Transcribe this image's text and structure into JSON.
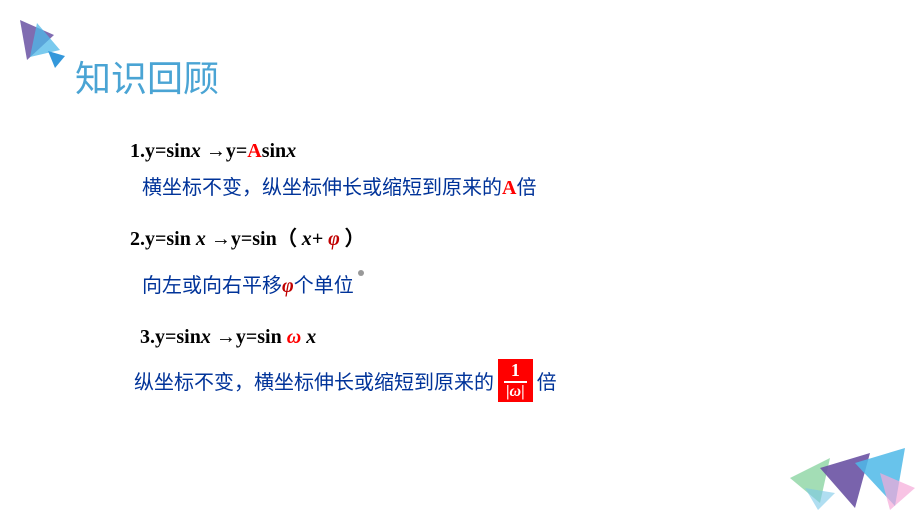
{
  "header": {
    "title": "知识回顾",
    "title_color": "#4aa4d4",
    "title_fontsize": 36,
    "triangle_colors": {
      "large": [
        "#6a52a3",
        "#4db8e8"
      ],
      "small": "#3498db"
    }
  },
  "content": {
    "items": [
      {
        "formula_prefix": "1.y=sin",
        "formula_var1": "x",
        "formula_arrow": " →y=",
        "formula_highlight": "A",
        "formula_suffix": "sin",
        "formula_var2": "x",
        "description_prefix": "横坐标不变，纵坐标伸长或缩短到原来的",
        "description_highlight": "A",
        "description_suffix": "倍"
      },
      {
        "formula_prefix": "2.y=sin ",
        "formula_var1": "x",
        "formula_arrow": " →y=sin",
        "formula_paren_open": "（",
        "formula_mid": " x+",
        "formula_highlight": " φ",
        "formula_paren_close": " ）",
        "description_prefix": "向左或向右平移",
        "description_highlight": "φ",
        "description_suffix": "个单位"
      },
      {
        "formula_prefix": "3.y=sin",
        "formula_var1": "x",
        "formula_arrow": " →y=sin ",
        "formula_highlight": "ω",
        "formula_var2": " x",
        "description_prefix": "纵坐标不变，横坐标伸长或缩短到原来的",
        "fraction_num": "1",
        "fraction_den": "|ω|",
        "description_suffix": " 倍"
      }
    ]
  },
  "colors": {
    "text_black": "#000000",
    "text_blue": "#003399",
    "text_red": "#ff0000",
    "text_darkred": "#c00000",
    "background": "#ffffff"
  },
  "decorations": {
    "bottom_right_triangles": [
      {
        "color": "#8cd4a3",
        "opacity": 0.8
      },
      {
        "color": "#6a52a3",
        "opacity": 0.9
      },
      {
        "color": "#4db8e8",
        "opacity": 0.8
      },
      {
        "color": "#f5a9d8",
        "opacity": 0.7
      }
    ]
  }
}
